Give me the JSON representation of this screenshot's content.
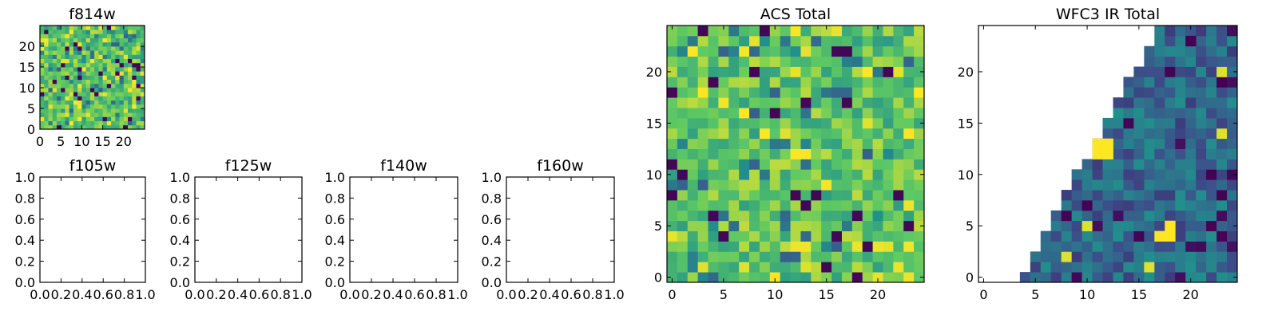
{
  "figure": {
    "panels": [
      {
        "key": "f814w",
        "title": "f814w",
        "kind": "heatmap",
        "grid": 25,
        "seed": 3,
        "colorscale": "bright",
        "xlim": [
          0,
          25
        ],
        "ylim": [
          0,
          25
        ],
        "xticks": [
          0,
          5,
          10,
          15,
          20
        ],
        "yticks": [
          0,
          5,
          10,
          15,
          20
        ]
      },
      {
        "key": "acs_total",
        "title": "ACS Total",
        "kind": "heatmap",
        "grid": 25,
        "seed": 11,
        "colorscale": "bright",
        "xlim": [
          -0.5,
          24.5
        ],
        "ylim": [
          -0.5,
          24.5
        ],
        "xticks": [
          0,
          5,
          10,
          15,
          20
        ],
        "yticks": [
          0,
          5,
          10,
          15,
          20
        ]
      },
      {
        "key": "wfc3_ir_total",
        "title": "WFC3 IR Total",
        "kind": "heatmap",
        "grid": 25,
        "seed": 29,
        "colorscale": "dark",
        "mask": "triangle",
        "xlim": [
          -0.5,
          24.5
        ],
        "ylim": [
          -0.5,
          24.5
        ],
        "xticks": [
          0,
          5,
          10,
          15,
          20
        ],
        "yticks": [
          0,
          5,
          10,
          15,
          20
        ]
      },
      {
        "key": "f105w",
        "title": "f105w",
        "kind": "empty",
        "xlim": [
          0,
          1
        ],
        "ylim": [
          0,
          1
        ],
        "xticks": [
          "0.0",
          "0.2",
          "0.4",
          "0.6",
          "0.8",
          "1.0"
        ],
        "yticks": [
          "0.0",
          "0.2",
          "0.4",
          "0.6",
          "0.8",
          "1.0"
        ]
      },
      {
        "key": "f125w",
        "title": "f125w",
        "kind": "empty",
        "xlim": [
          0,
          1
        ],
        "ylim": [
          0,
          1
        ],
        "xticks": [
          "0.0",
          "0.2",
          "0.4",
          "0.6",
          "0.8",
          "1.0"
        ],
        "yticks": [
          "0.0",
          "0.2",
          "0.4",
          "0.6",
          "0.8",
          "1.0"
        ]
      },
      {
        "key": "f140w",
        "title": "f140w",
        "kind": "empty",
        "xlim": [
          0,
          1
        ],
        "ylim": [
          0,
          1
        ],
        "xticks": [
          "0.0",
          "0.2",
          "0.4",
          "0.6",
          "0.8",
          "1.0"
        ],
        "yticks": [
          "0.0",
          "0.2",
          "0.4",
          "0.6",
          "0.8",
          "1.0"
        ]
      },
      {
        "key": "f160w",
        "title": "f160w",
        "kind": "empty",
        "xlim": [
          0,
          1
        ],
        "ylim": [
          0,
          1
        ],
        "xticks": [
          "0.0",
          "0.2",
          "0.4",
          "0.6",
          "0.8",
          "1.0"
        ],
        "yticks": [
          "0.0",
          "0.2",
          "0.4",
          "0.6",
          "0.8",
          "1.0"
        ]
      }
    ]
  },
  "chart_data": [
    {
      "type": "heatmap",
      "title": "f814w",
      "grid_size": [
        25,
        25
      ],
      "xlim": [
        0,
        25
      ],
      "ylim": [
        0,
        25
      ],
      "x_ticks": [
        0,
        5,
        10,
        15,
        20
      ],
      "y_ticks": [
        0,
        5,
        10,
        15,
        20
      ],
      "colormap": "viridis",
      "grid": false
    },
    {
      "type": "heatmap",
      "title": "ACS Total",
      "grid_size": [
        25,
        25
      ],
      "xlim": [
        -0.5,
        24.5
      ],
      "ylim": [
        -0.5,
        24.5
      ],
      "x_ticks": [
        0,
        5,
        10,
        15,
        20
      ],
      "y_ticks": [
        0,
        5,
        10,
        15,
        20
      ],
      "colormap": "viridis",
      "grid": false
    },
    {
      "type": "heatmap",
      "title": "WFC3 IR Total",
      "grid_size": [
        25,
        25
      ],
      "xlim": [
        -0.5,
        24.5
      ],
      "ylim": [
        -0.5,
        24.5
      ],
      "x_ticks": [
        0,
        5,
        10,
        15,
        20
      ],
      "y_ticks": [
        0,
        5,
        10,
        15,
        20
      ],
      "colormap": "viridis",
      "grid": false
    },
    {
      "type": "scatter",
      "title": "f105w",
      "xlim": [
        0,
        1
      ],
      "ylim": [
        0,
        1
      ],
      "series": [],
      "grid": false
    },
    {
      "type": "scatter",
      "title": "f125w",
      "xlim": [
        0,
        1
      ],
      "ylim": [
        0,
        1
      ],
      "series": [],
      "grid": false
    },
    {
      "type": "scatter",
      "title": "f140w",
      "xlim": [
        0,
        1
      ],
      "ylim": [
        0,
        1
      ],
      "series": [],
      "grid": false
    },
    {
      "type": "scatter",
      "title": "f160w",
      "xlim": [
        0,
        1
      ],
      "ylim": [
        0,
        1
      ],
      "series": [],
      "grid": false
    }
  ],
  "colors": {
    "viridis": [
      "#440154",
      "#3b528b",
      "#21918c",
      "#5ec962",
      "#fde725"
    ],
    "frame": "#000000",
    "background": "#ffffff"
  }
}
